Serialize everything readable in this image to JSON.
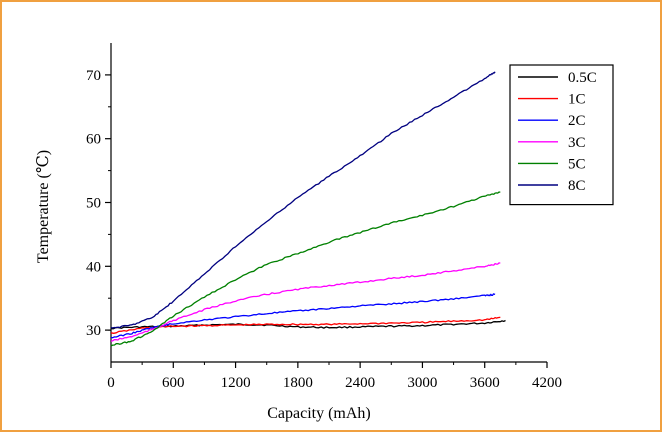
{
  "chart_data": {
    "type": "line",
    "title": "",
    "xlabel": "Capacity (mAh)",
    "ylabel": "Temperature (℃)",
    "xlim": [
      0,
      4200
    ],
    "ylim": [
      25,
      75
    ],
    "xticks": [
      0,
      600,
      1200,
      1800,
      2400,
      3000,
      3600,
      4200
    ],
    "yticks": [
      30,
      40,
      50,
      60,
      70
    ],
    "legend_position": "top-right",
    "grid": false,
    "series": [
      {
        "name": "0.5C",
        "color": "#000000",
        "x": [
          0,
          300,
          600,
          900,
          1200,
          1500,
          1800,
          2100,
          2400,
          2700,
          3000,
          3300,
          3600,
          3800
        ],
        "y": [
          30.3,
          30.5,
          30.6,
          30.8,
          30.9,
          30.8,
          30.5,
          30.4,
          30.5,
          30.6,
          30.7,
          30.9,
          31.1,
          31.5
        ]
      },
      {
        "name": "1C",
        "color": "#ff0000",
        "x": [
          0,
          300,
          600,
          900,
          1200,
          1500,
          1800,
          2100,
          2400,
          2700,
          3000,
          3300,
          3600,
          3750
        ],
        "y": [
          29.5,
          30.3,
          30.6,
          30.7,
          30.8,
          30.9,
          30.9,
          30.9,
          31.0,
          31.1,
          31.2,
          31.4,
          31.6,
          32.0
        ]
      },
      {
        "name": "2C",
        "color": "#0000ff",
        "x": [
          0,
          200,
          400,
          600,
          900,
          1200,
          1500,
          1800,
          2100,
          2400,
          2700,
          3000,
          3300,
          3600,
          3700
        ],
        "y": [
          28.8,
          29.5,
          30.4,
          31.0,
          31.6,
          32.1,
          32.6,
          33.0,
          33.4,
          33.8,
          34.1,
          34.5,
          34.9,
          35.4,
          35.6
        ]
      },
      {
        "name": "3C",
        "color": "#ff00ff",
        "x": [
          0,
          200,
          400,
          600,
          900,
          1200,
          1500,
          1800,
          2100,
          2400,
          2700,
          3000,
          3300,
          3600,
          3750
        ],
        "y": [
          28.3,
          29.0,
          30.1,
          31.5,
          33.2,
          34.6,
          35.6,
          36.4,
          37.0,
          37.5,
          38.1,
          38.6,
          39.3,
          40.0,
          40.5
        ]
      },
      {
        "name": "5C",
        "color": "#008000",
        "x": [
          0,
          200,
          400,
          600,
          900,
          1200,
          1500,
          1800,
          2100,
          2400,
          2700,
          3000,
          3300,
          3600,
          3750
        ],
        "y": [
          27.6,
          28.3,
          29.8,
          32.2,
          35.2,
          37.9,
          40.3,
          42.0,
          43.8,
          45.3,
          46.8,
          48.0,
          49.4,
          51.0,
          51.6
        ]
      },
      {
        "name": "8C",
        "color": "#000080",
        "x": [
          0,
          200,
          400,
          600,
          900,
          1200,
          1500,
          1800,
          2100,
          2400,
          2700,
          3000,
          3300,
          3600,
          3700
        ],
        "y": [
          30.3,
          30.8,
          32.0,
          34.5,
          38.8,
          43.1,
          47.0,
          50.8,
          54.1,
          57.3,
          60.8,
          63.7,
          66.5,
          69.4,
          70.5
        ]
      }
    ]
  }
}
